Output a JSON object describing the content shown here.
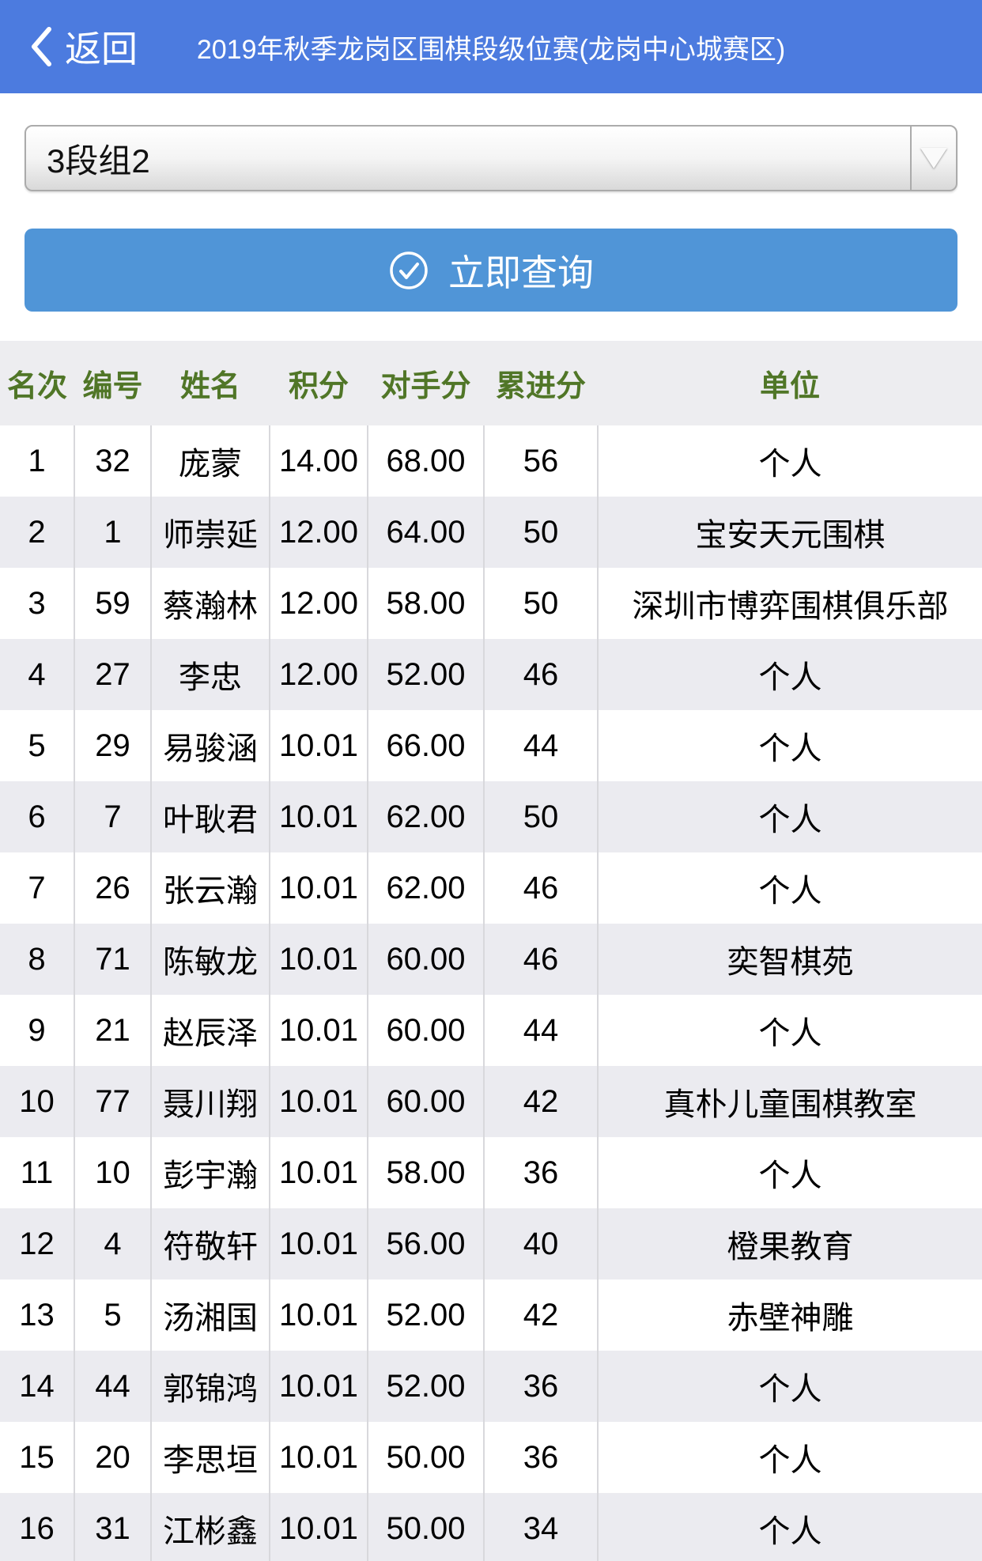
{
  "header": {
    "back_label": "返回",
    "title": "2019年秋季龙岗区围棋段级位赛(龙岗中心城赛区)"
  },
  "filter": {
    "selected_group": "3段组2"
  },
  "query_button": {
    "label": "立即查询"
  },
  "icons": {
    "back_chevron": "chevron-left",
    "dropdown_arrow": "triangle-down",
    "query_check": "check-circle"
  },
  "colors": {
    "navbar_blue": "#4C7BDF",
    "button_blue": "#5095D7",
    "link_blue": "#3D76DC",
    "header_green": "#507627",
    "header_row_bg": "#EDEDF0",
    "stripe_row_bg": "#EBEBF0",
    "column_border": "#D8D8DC"
  },
  "table": {
    "columns": [
      "名次",
      "编号",
      "姓名",
      "积分",
      "对手分",
      "累进分",
      "单位"
    ],
    "rows": [
      [
        "1",
        "32",
        "庞蒙",
        "14.00",
        "68.00",
        "56",
        "个人"
      ],
      [
        "2",
        "1",
        "师崇延",
        "12.00",
        "64.00",
        "50",
        "宝安天元围棋"
      ],
      [
        "3",
        "59",
        "蔡瀚林",
        "12.00",
        "58.00",
        "50",
        "深圳市博弈围棋俱乐部"
      ],
      [
        "4",
        "27",
        "李忠",
        "12.00",
        "52.00",
        "46",
        "个人"
      ],
      [
        "5",
        "29",
        "易骏涵",
        "10.01",
        "66.00",
        "44",
        "个人"
      ],
      [
        "6",
        "7",
        "叶耿君",
        "10.01",
        "62.00",
        "50",
        "个人"
      ],
      [
        "7",
        "26",
        "张云瀚",
        "10.01",
        "62.00",
        "46",
        "个人"
      ],
      [
        "8",
        "71",
        "陈敏龙",
        "10.01",
        "60.00",
        "46",
        "奕智棋苑"
      ],
      [
        "9",
        "21",
        "赵辰泽",
        "10.01",
        "60.00",
        "44",
        "个人"
      ],
      [
        "10",
        "77",
        "聂川翔",
        "10.01",
        "60.00",
        "42",
        "真朴儿童围棋教室"
      ],
      [
        "11",
        "10",
        "彭宇瀚",
        "10.01",
        "58.00",
        "36",
        "个人"
      ],
      [
        "12",
        "4",
        "符敬轩",
        "10.01",
        "56.00",
        "40",
        "橙果教育"
      ],
      [
        "13",
        "5",
        "汤湘国",
        "10.01",
        "52.00",
        "42",
        "赤壁神雕"
      ],
      [
        "14",
        "44",
        "郭锦鸿",
        "10.01",
        "52.00",
        "36",
        "个人"
      ],
      [
        "15",
        "20",
        "李思垣",
        "10.01",
        "50.00",
        "36",
        "个人"
      ],
      [
        "16",
        "31",
        "江彬鑫",
        "10.01",
        "50.00",
        "34",
        "个人"
      ]
    ]
  }
}
